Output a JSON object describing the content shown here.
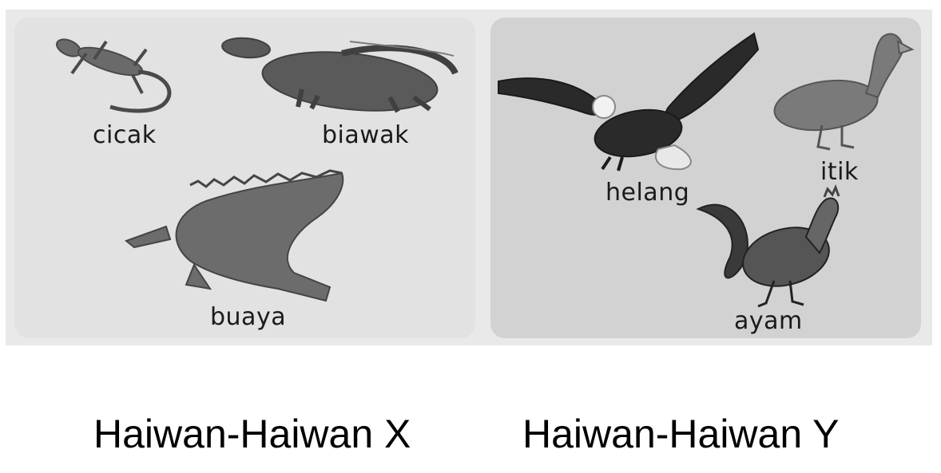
{
  "panel_x": {
    "animals": [
      {
        "name": "cicak",
        "icon": "gecko-image"
      },
      {
        "name": "biawak",
        "icon": "monitor-lizard-image"
      },
      {
        "name": "buaya",
        "icon": "crocodile-image"
      }
    ]
  },
  "panel_y": {
    "animals": [
      {
        "name": "helang",
        "icon": "eagle-image"
      },
      {
        "name": "itik",
        "icon": "duck-image"
      },
      {
        "name": "ayam",
        "icon": "rooster-image"
      }
    ]
  },
  "captions": {
    "x": "Haiwan-Haiwan X",
    "y": "Haiwan-Haiwan Y"
  }
}
